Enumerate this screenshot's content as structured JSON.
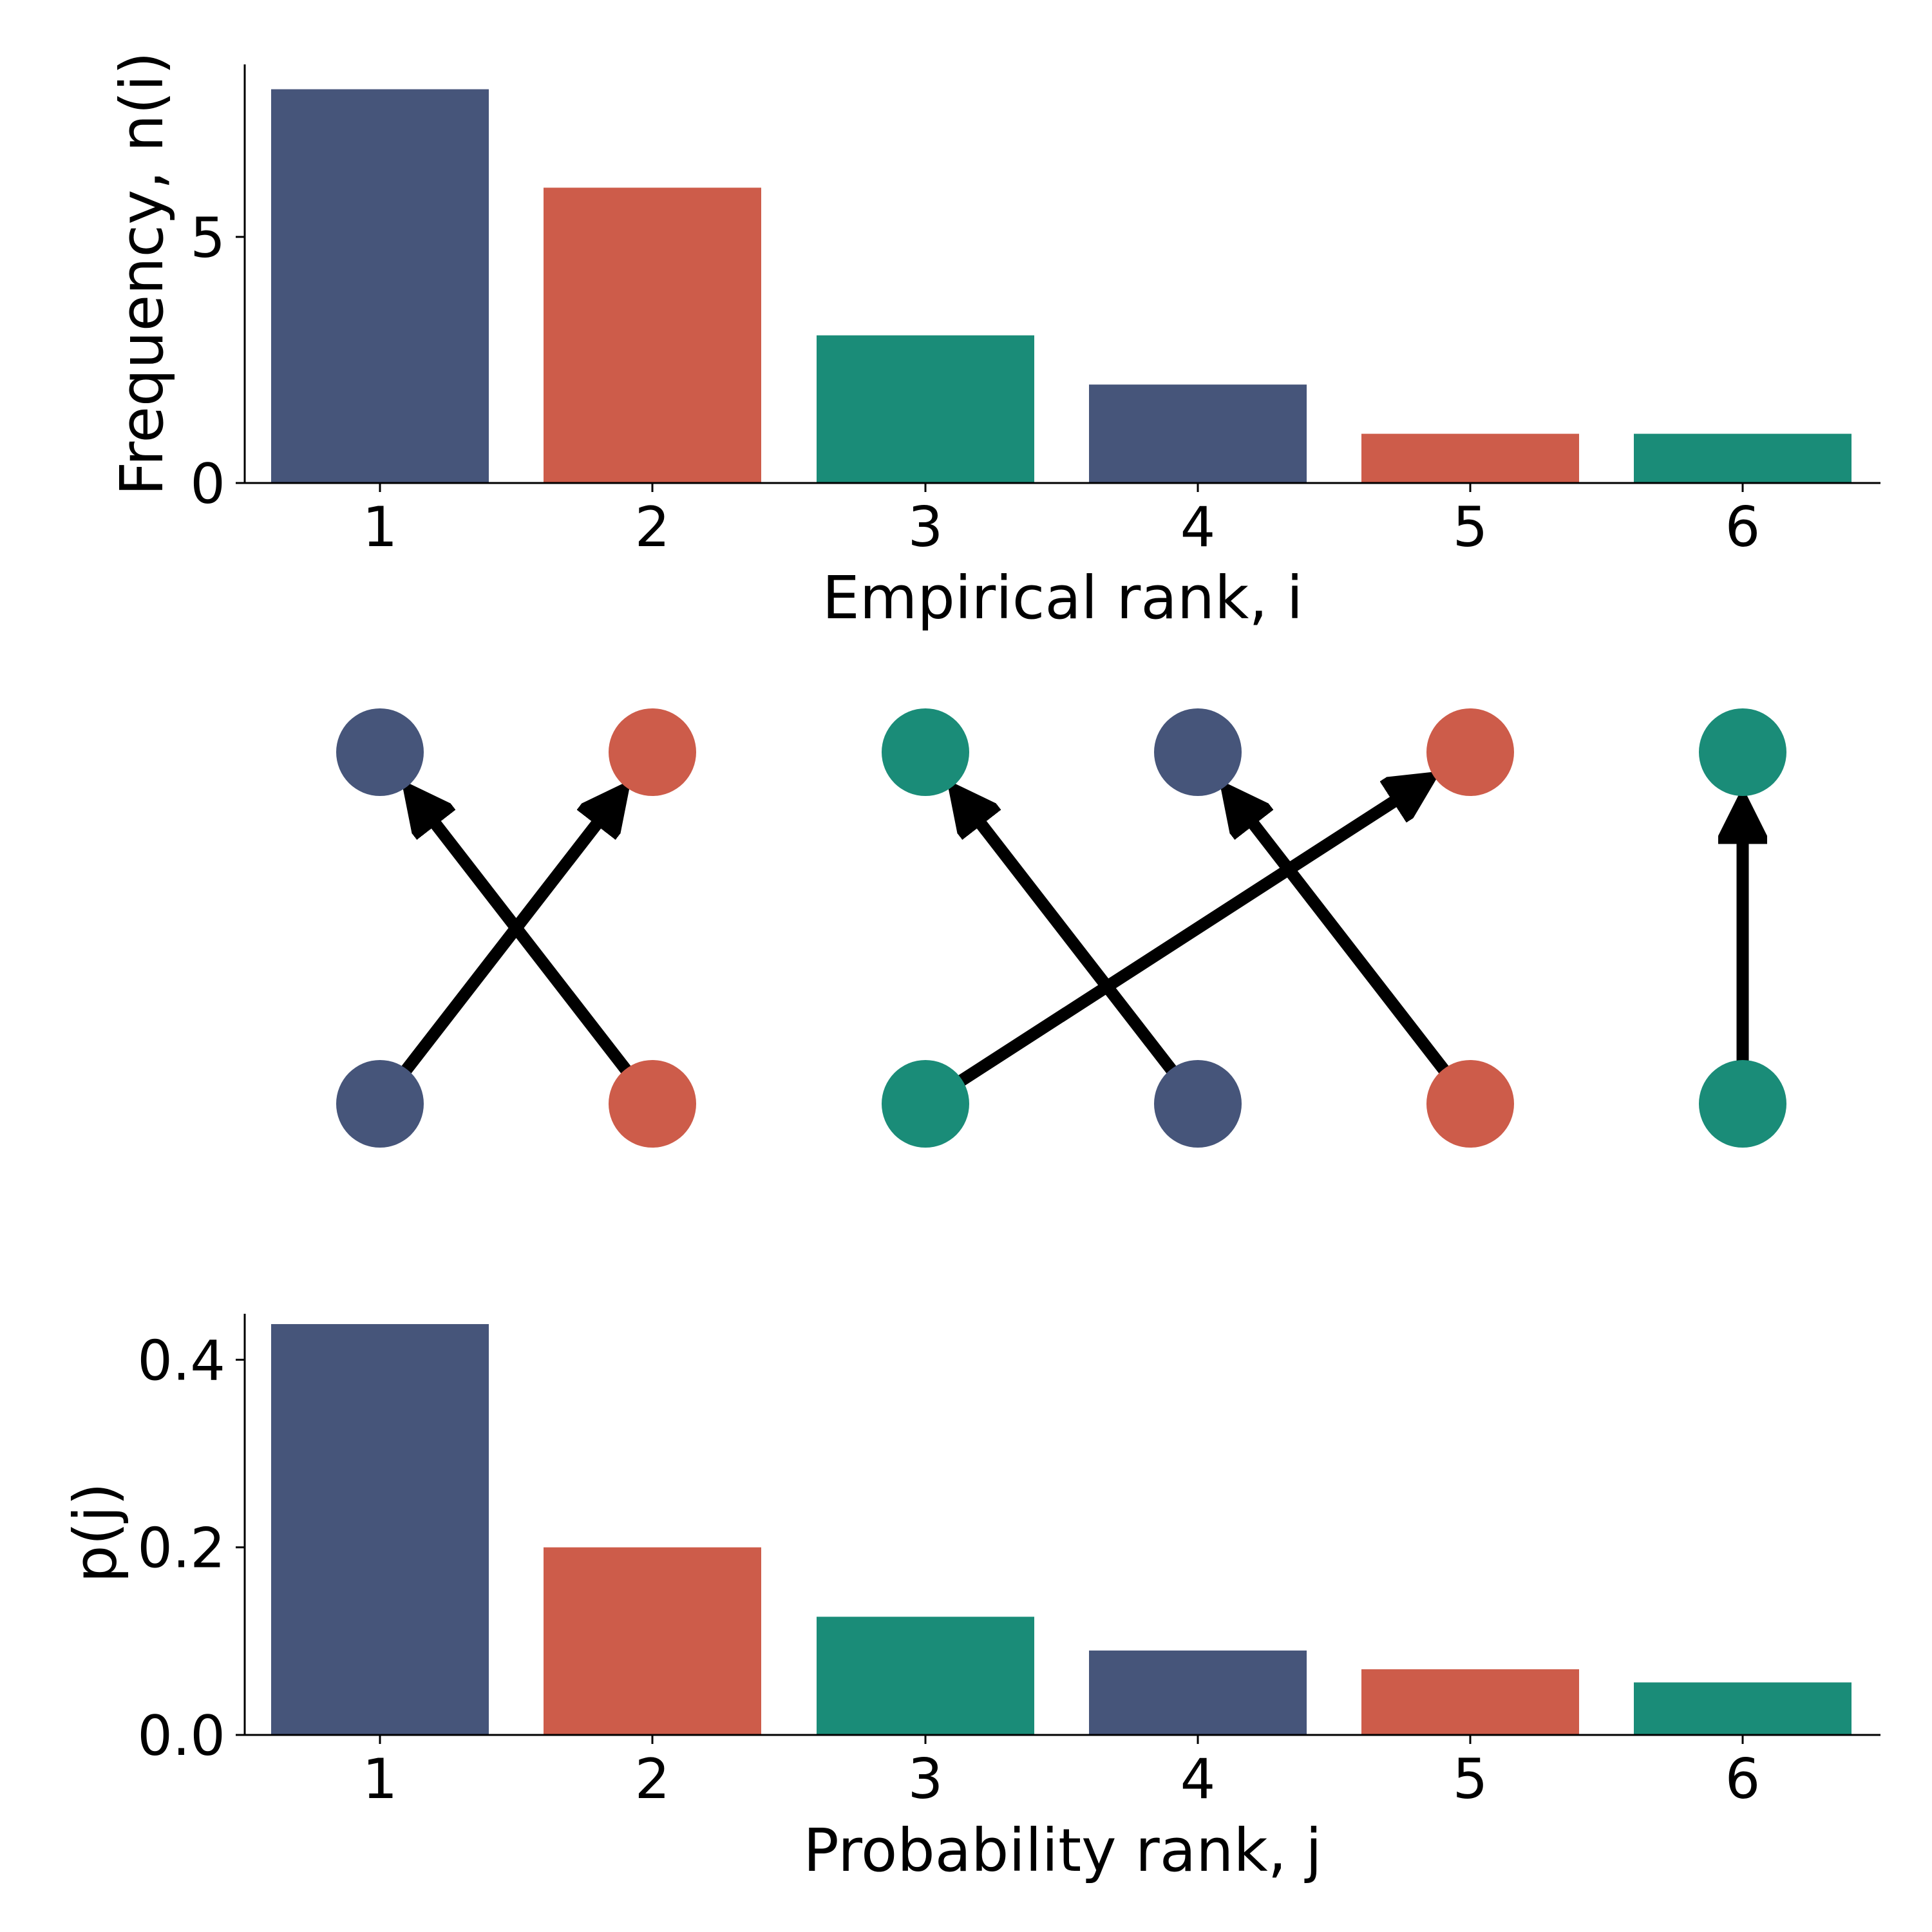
{
  "colors": {
    "navy": "#46557a",
    "coral": "#cd5c4a",
    "teal": "#1a8c78",
    "arrow": "#000000"
  },
  "chart_data": [
    {
      "type": "bar",
      "categories": [
        "1",
        "2",
        "3",
        "4",
        "5",
        "6"
      ],
      "values": [
        8,
        6,
        3,
        2,
        1,
        1
      ],
      "bar_colors": [
        "navy",
        "coral",
        "teal",
        "navy",
        "coral",
        "teal"
      ],
      "xlabel": "Empirical rank, i",
      "ylabel": "Frequency, n(i)",
      "yticks": [
        0,
        5
      ],
      "ytick_labels": [
        "0",
        "5"
      ],
      "ylim": [
        0,
        8.4
      ],
      "grid": false
    },
    {
      "type": "diagram",
      "top_row_colors": [
        "navy",
        "coral",
        "teal",
        "navy",
        "coral",
        "teal"
      ],
      "bottom_row_colors": [
        "navy",
        "coral",
        "teal",
        "navy",
        "coral",
        "teal"
      ],
      "mapping": [
        {
          "from_bottom": 1,
          "to_top": 2
        },
        {
          "from_bottom": 2,
          "to_top": 1
        },
        {
          "from_bottom": 3,
          "to_top": 5
        },
        {
          "from_bottom": 4,
          "to_top": 3
        },
        {
          "from_bottom": 5,
          "to_top": 4
        },
        {
          "from_bottom": 6,
          "to_top": 6
        }
      ]
    },
    {
      "type": "bar",
      "categories": [
        "1",
        "2",
        "3",
        "4",
        "5",
        "6"
      ],
      "values": [
        0.438,
        0.2,
        0.126,
        0.09,
        0.07,
        0.056
      ],
      "bar_colors": [
        "navy",
        "coral",
        "teal",
        "navy",
        "coral",
        "teal"
      ],
      "xlabel": "Probability rank, j",
      "ylabel": "p(j)",
      "yticks": [
        0.0,
        0.2,
        0.4
      ],
      "ytick_labels": [
        "0.0",
        "0.2",
        "0.4"
      ],
      "ylim": [
        0,
        0.46
      ],
      "grid": false
    }
  ]
}
